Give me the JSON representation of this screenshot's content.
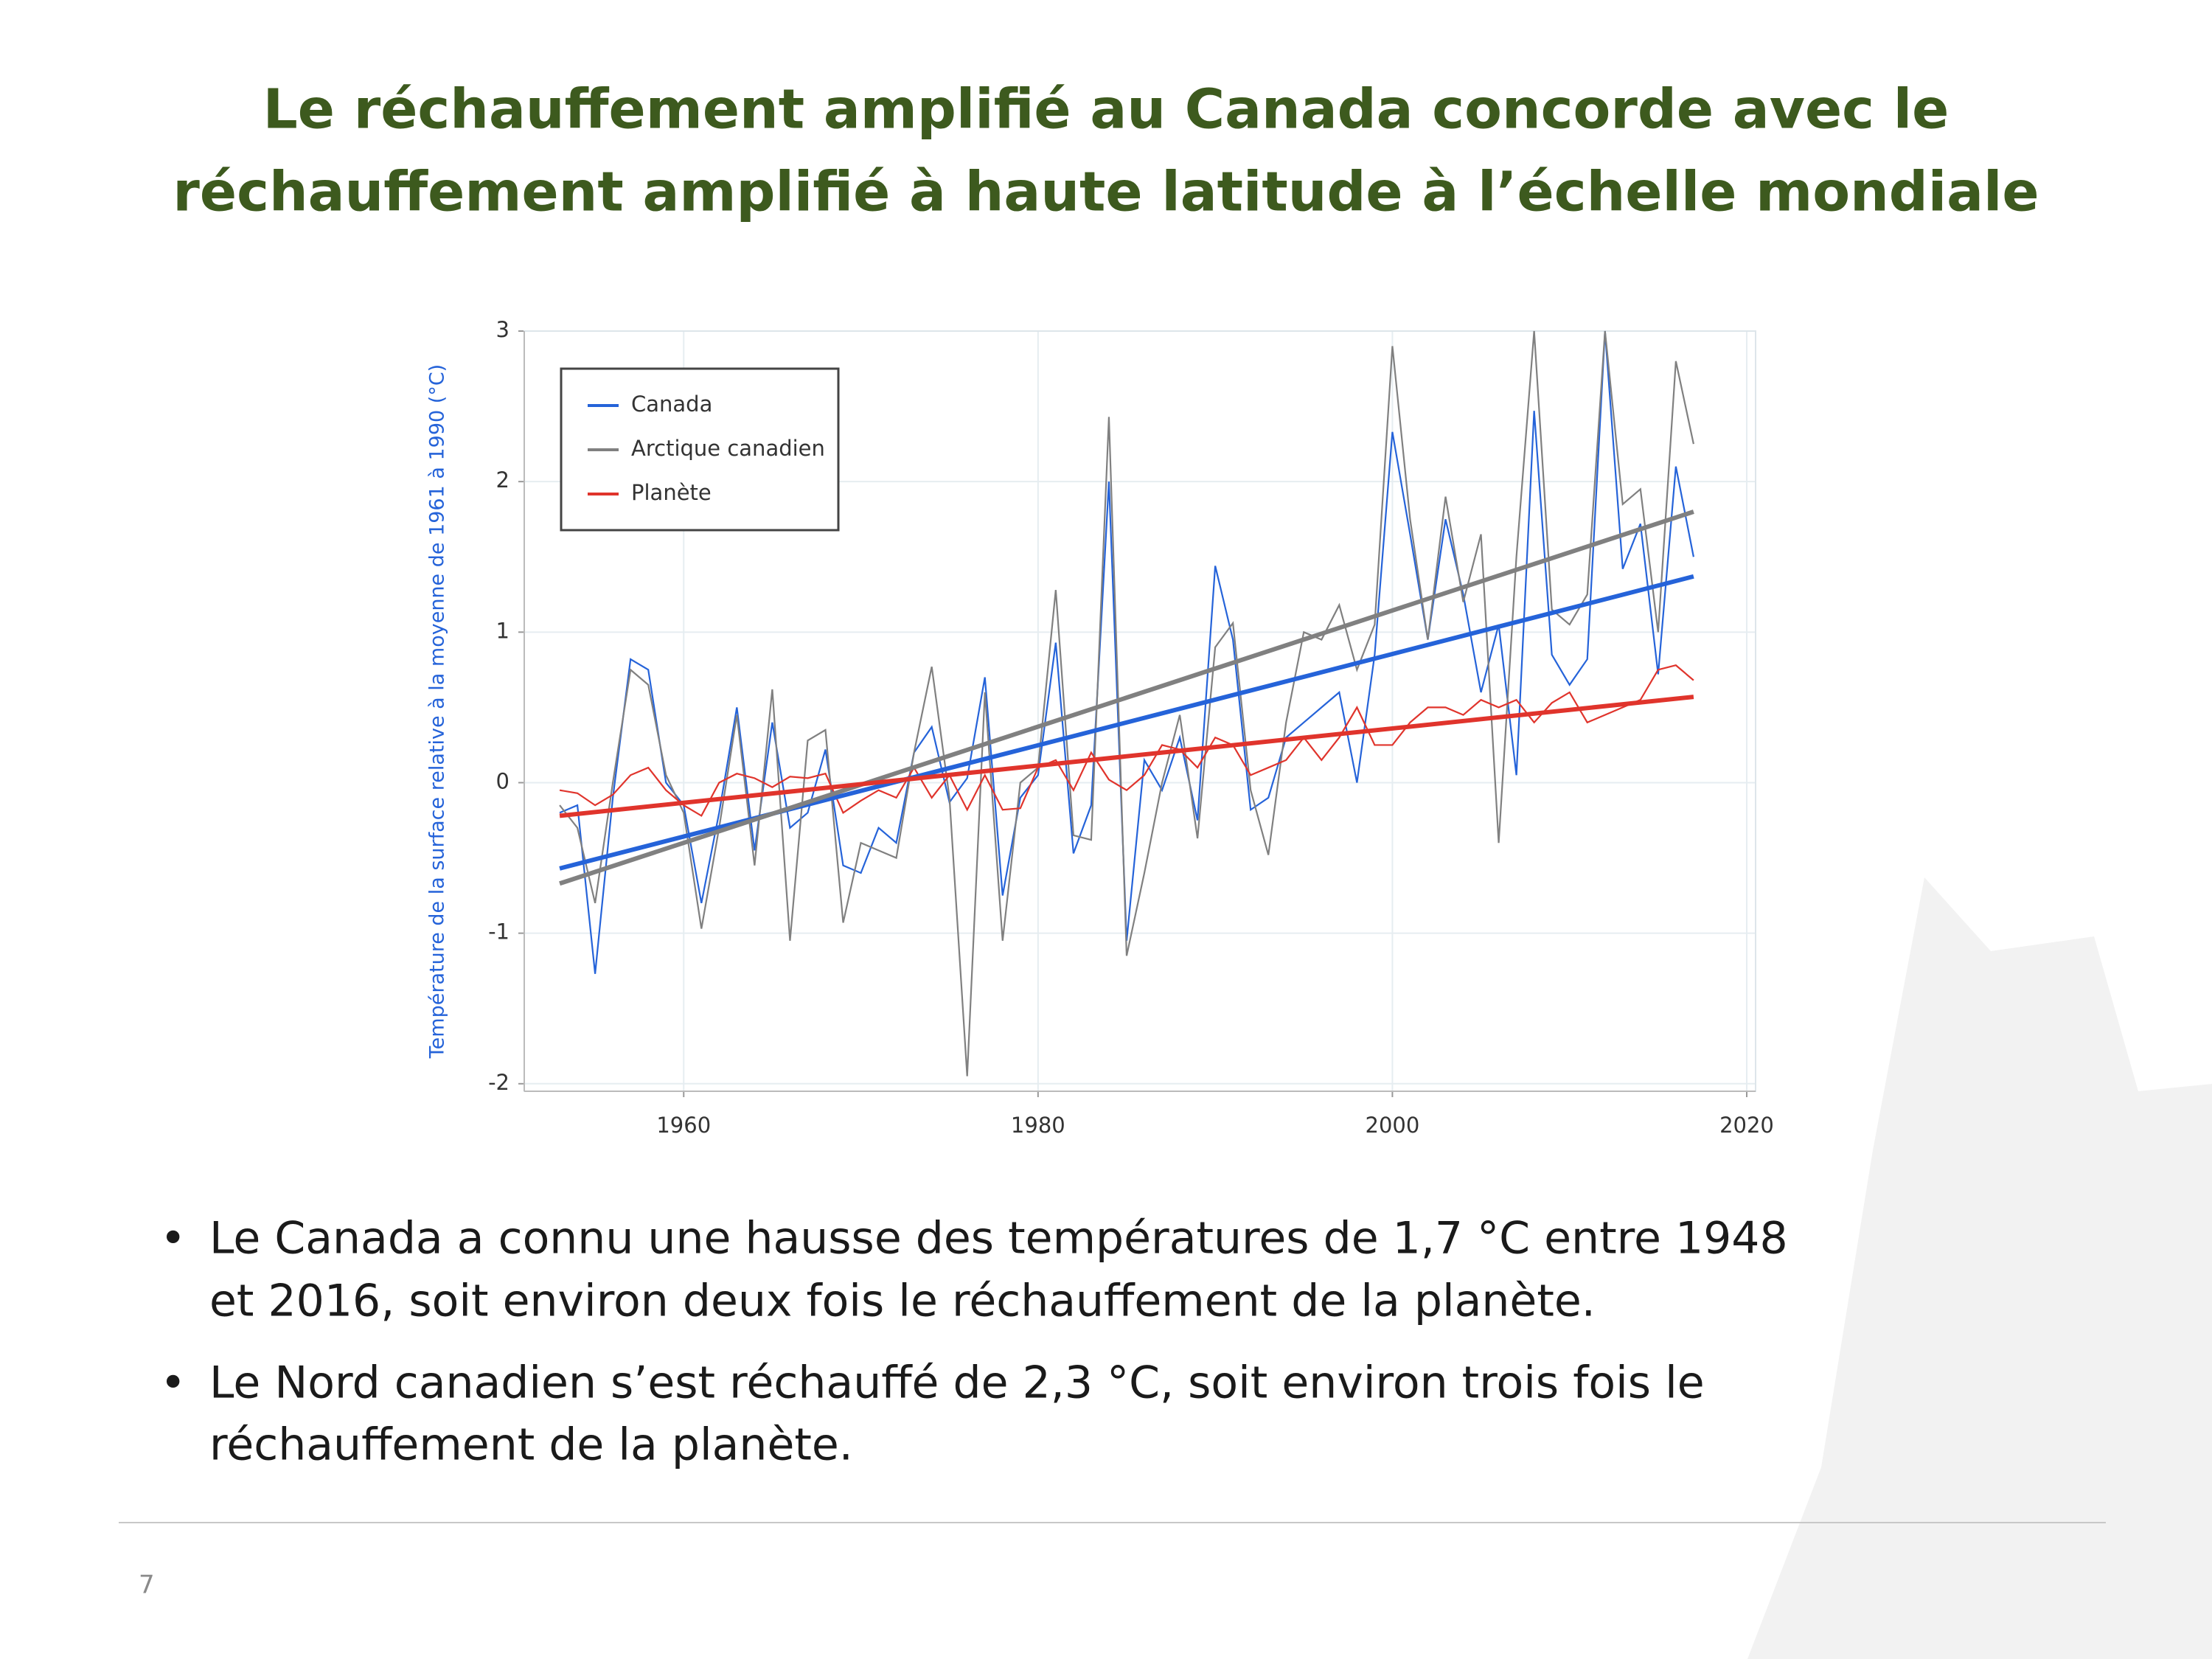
{
  "slide": {
    "title": [
      "Le réchauffement amplifié au Canada concorde avec le",
      "réchauffement amplifié à haute latitude à l’échelle mondiale"
    ],
    "bullets": [
      [
        "Le Canada a connu une hausse des températures de 1,7 °C entre 1948",
        "et 2016, soit environ deux fois le réchauffement de la planète."
      ],
      [
        "Le Nord canadien s’est réchauffé de 2,3 °C, soit environ trois fois le",
        "réchauffement de la planète."
      ]
    ],
    "page_number": "7"
  },
  "chart_data": {
    "type": "line",
    "y_label": "Température de la surface relative à la moyenne de 1961 à 1990 (°C)",
    "x": [
      1953,
      1954,
      1955,
      1956,
      1957,
      1958,
      1959,
      1960,
      1961,
      1962,
      1963,
      1964,
      1965,
      1966,
      1967,
      1968,
      1969,
      1970,
      1971,
      1972,
      1973,
      1974,
      1975,
      1976,
      1977,
      1978,
      1979,
      1980,
      1981,
      1982,
      1983,
      1984,
      1985,
      1986,
      1987,
      1988,
      1989,
      1990,
      1991,
      1992,
      1993,
      1994,
      1995,
      1996,
      1997,
      1998,
      1999,
      2000,
      2001,
      2002,
      2003,
      2004,
      2005,
      2006,
      2007,
      2008,
      2009,
      2010,
      2011,
      2012,
      2013,
      2014,
      2015,
      2016,
      2017
    ],
    "trend_x": [
      1953,
      2017
    ],
    "series": [
      {
        "name": "Canada",
        "color": "#2563d9",
        "trend": [
          -0.57,
          1.37
        ],
        "values": [
          -0.2,
          -0.15,
          -1.27,
          -0.1,
          0.82,
          0.75,
          0.0,
          -0.15,
          -0.8,
          -0.2,
          0.5,
          -0.45,
          0.4,
          -0.3,
          -0.2,
          0.22,
          -0.55,
          -0.6,
          -0.3,
          -0.4,
          0.2,
          0.37,
          -0.13,
          0.03,
          0.7,
          -0.75,
          -0.1,
          0.05,
          0.93,
          -0.47,
          -0.15,
          2.0,
          -1.05,
          0.15,
          -0.05,
          0.3,
          -0.25,
          1.44,
          0.95,
          -0.18,
          -0.1,
          0.3,
          0.4,
          0.5,
          0.6,
          0.0,
          0.85,
          2.33,
          1.65,
          0.95,
          1.75,
          1.25,
          0.6,
          1.05,
          0.05,
          2.47,
          0.85,
          0.65,
          0.82,
          3.0,
          1.42,
          1.72,
          0.72,
          2.1,
          1.5
        ]
      },
      {
        "name": "Arctique canadien",
        "color": "#808080",
        "trend": [
          -0.67,
          1.8
        ],
        "values": [
          -0.15,
          -0.3,
          -0.8,
          0.0,
          0.75,
          0.65,
          0.05,
          -0.2,
          -0.97,
          -0.3,
          0.45,
          -0.55,
          0.62,
          -1.05,
          0.28,
          0.35,
          -0.93,
          -0.4,
          -0.45,
          -0.5,
          0.2,
          0.77,
          -0.1,
          -1.95,
          0.6,
          -1.05,
          0.0,
          0.1,
          1.28,
          -0.35,
          -0.38,
          2.43,
          -1.15,
          -0.6,
          0.0,
          0.45,
          -0.37,
          0.9,
          1.06,
          -0.05,
          -0.48,
          0.4,
          1.0,
          0.95,
          1.18,
          0.75,
          1.05,
          2.9,
          1.75,
          0.95,
          1.9,
          1.2,
          1.65,
          -0.4,
          1.5,
          3.0,
          1.15,
          1.05,
          1.25,
          3.0,
          1.85,
          1.95,
          1.0,
          2.8,
          2.25
        ]
      },
      {
        "name": "Planète",
        "color": "#e0342c",
        "trend": [
          -0.22,
          0.57
        ],
        "values": [
          -0.05,
          -0.07,
          -0.15,
          -0.08,
          0.05,
          0.1,
          -0.05,
          -0.15,
          -0.22,
          0.0,
          0.06,
          0.03,
          -0.03,
          0.04,
          0.03,
          0.06,
          -0.2,
          -0.12,
          -0.05,
          -0.1,
          0.1,
          -0.1,
          0.05,
          -0.18,
          0.05,
          -0.18,
          -0.17,
          0.1,
          0.15,
          -0.05,
          0.2,
          0.02,
          -0.05,
          0.05,
          0.25,
          0.22,
          0.1,
          0.3,
          0.25,
          0.05,
          0.1,
          0.15,
          0.3,
          0.15,
          0.3,
          0.5,
          0.25,
          0.25,
          0.4,
          0.5,
          0.5,
          0.45,
          0.55,
          0.5,
          0.55,
          0.4,
          0.53,
          0.6,
          0.4,
          0.45,
          0.5,
          0.55,
          0.75,
          0.78,
          0.68
        ]
      }
    ],
    "xlim": [
      1951,
      2020.5
    ],
    "ylim": [
      -2.05,
      3
    ],
    "xticks": [
      1960,
      1980,
      2000,
      2020
    ],
    "yticks": [
      -2,
      -1,
      0,
      1,
      2,
      3
    ],
    "grid": true,
    "legend": "upper left"
  }
}
